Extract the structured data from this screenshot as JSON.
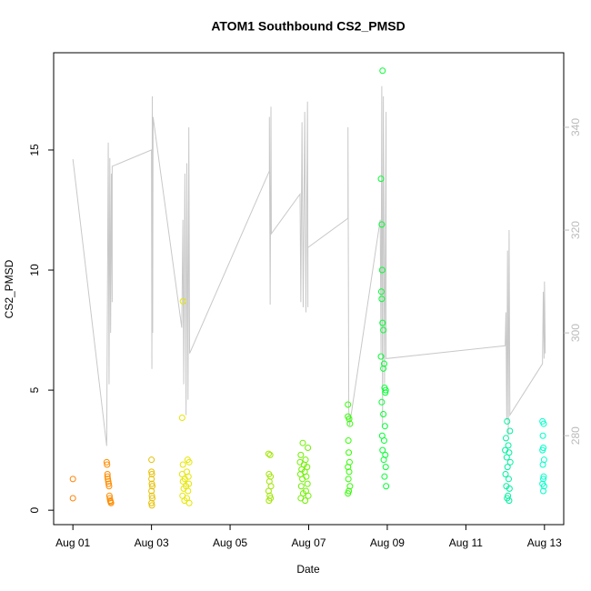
{
  "chart_data": {
    "type": "scatter",
    "title": "ATOM1 Southbound CS2_PMSD",
    "xlabel": "Date",
    "ylabel": "CS2_PMSD",
    "xlim": [
      -0.49,
      12.49
    ],
    "xticks": [
      {
        "value": 0,
        "label": "Aug 01"
      },
      {
        "value": 2,
        "label": "Aug 03"
      },
      {
        "value": 4,
        "label": "Aug 05"
      },
      {
        "value": 6,
        "label": "Aug 07"
      },
      {
        "value": 8,
        "label": "Aug 09"
      },
      {
        "value": 10,
        "label": "Aug 11"
      },
      {
        "value": 12,
        "label": "Aug 13"
      }
    ],
    "ylim": [
      -0.6,
      19.05
    ],
    "yticks": [
      0,
      5,
      10,
      15
    ],
    "y2lim": [
      262.7,
      354.5
    ],
    "y2ticks": [
      280,
      300,
      320,
      340
    ],
    "grid": false,
    "series": [
      {
        "type": "line",
        "axis": "y2",
        "color": "#c8c8c8",
        "x": [
          0,
          0.86,
          0.88,
          0.9,
          0.92,
          0.94,
          0.96,
          0.98,
          1.0,
          1.0,
          2.0,
          2.01,
          2.02,
          2.03,
          2.04,
          2.77,
          2.8,
          2.82,
          2.85,
          2.88,
          2.9,
          2.93,
          2.95,
          2.97,
          5.0,
          5.0,
          5.02,
          5.04,
          5.05,
          5.78,
          5.8,
          5.83,
          5.86,
          5.9,
          5.93,
          5.97,
          5.98,
          5.98,
          7.0,
          7.0,
          7.02,
          7.04,
          7.82,
          7.84,
          7.86,
          7.88,
          7.9,
          7.93,
          7.97,
          7.97,
          11.0,
          11.02,
          11.04,
          11.06,
          11.08,
          11.1,
          11.12,
          11.95,
          11.97,
          11.99,
          12.0,
          12.02
        ],
        "values": [
          333.8,
          278,
          308,
          337,
          290,
          334,
          300,
          331,
          306,
          332.4,
          335.6,
          293,
          346,
          300,
          342,
          301,
          322,
          290,
          331,
          284,
          333,
          287,
          340,
          296,
          331.5,
          342,
          305.5,
          344,
          319.3,
          327,
          306,
          341,
          305,
          343,
          304,
          345,
          305,
          316.6,
          322.3,
          340,
          285,
          282,
          322,
          296,
          348,
          282,
          346,
          290,
          343,
          295,
          297.5,
          304,
          283,
          316,
          280,
          320,
          284,
          294,
          308,
          295,
          310,
          296
        ]
      },
      {
        "type": "scatter",
        "color": "#ff7f00",
        "x": [
          0.0,
          0.0
        ],
        "values": [
          1.3,
          0.5
        ]
      },
      {
        "type": "scatter",
        "color": "#ff8c00",
        "x": [
          0.86,
          0.87,
          0.88,
          0.88,
          0.89,
          0.9,
          0.91,
          0.92,
          0.93,
          0.94,
          0.95,
          0.96,
          0.97
        ],
        "values": [
          2.0,
          1.9,
          1.5,
          1.4,
          1.3,
          1.2,
          1.1,
          1.0,
          0.6,
          0.5,
          0.4,
          0.35,
          0.3
        ]
      },
      {
        "type": "scatter",
        "color": "#e6c000",
        "x": [
          2.0,
          2.0,
          2.01,
          2.0,
          2.01,
          2.02,
          2.0,
          2.01,
          2.02,
          2.0,
          2.01
        ],
        "values": [
          2.1,
          1.6,
          1.5,
          1.3,
          1.1,
          1.0,
          0.8,
          0.6,
          0.5,
          0.3,
          0.2
        ]
      },
      {
        "type": "scatter",
        "color": "#e6e600",
        "x": [
          2.8,
          2.78,
          2.92,
          2.96,
          2.8,
          2.9,
          2.78,
          2.94,
          2.85,
          2.8,
          2.95,
          2.88,
          2.82,
          2.93,
          2.79,
          2.9,
          2.84,
          2.96
        ],
        "values": [
          8.7,
          3.85,
          2.1,
          2.0,
          1.9,
          1.6,
          1.5,
          1.4,
          1.3,
          1.2,
          1.1,
          1.0,
          0.9,
          0.8,
          0.6,
          0.5,
          0.4,
          0.3
        ]
      },
      {
        "type": "scatter",
        "color": "#a0e600",
        "x": [
          4.98,
          5.02,
          4.99,
          5.03,
          5.0,
          5.04,
          4.98,
          5.01,
          5.03,
          4.99
        ],
        "values": [
          2.35,
          2.3,
          1.5,
          1.4,
          1.2,
          1.0,
          0.8,
          0.6,
          0.5,
          0.4
        ]
      },
      {
        "type": "scatter",
        "color": "#70f000",
        "x": [
          5.85,
          5.98,
          5.8,
          5.92,
          5.78,
          5.88,
          5.96,
          5.82,
          5.9,
          5.79,
          5.94,
          5.84,
          5.97,
          5.81,
          5.93,
          5.86,
          5.99,
          5.8,
          5.91
        ],
        "values": [
          2.8,
          2.6,
          2.3,
          2.1,
          2.0,
          1.9,
          1.8,
          1.7,
          1.6,
          1.5,
          1.4,
          1.3,
          1.1,
          1.0,
          0.8,
          0.7,
          0.6,
          0.5,
          0.4
        ]
      },
      {
        "type": "scatter",
        "color": "#30ff00",
        "x": [
          7.0,
          7.0,
          7.03,
          7.05,
          7.01,
          7.02,
          7.04,
          7.0,
          7.03,
          7.01,
          7.05,
          7.02,
          7.0
        ],
        "values": [
          4.4,
          3.9,
          3.8,
          3.6,
          2.9,
          2.4,
          2.0,
          1.8,
          1.6,
          1.3,
          1.0,
          0.8,
          0.7
        ]
      },
      {
        "type": "scatter",
        "color": "#00ff30",
        "x": [
          7.88,
          7.84,
          7.86,
          7.87,
          7.85,
          7.86,
          7.88,
          7.9,
          7.84,
          7.92,
          7.9,
          7.93,
          7.96,
          7.95,
          7.86,
          7.9,
          7.94,
          7.87,
          7.92,
          7.88,
          7.95,
          7.91,
          7.96,
          7.93,
          7.97
        ],
        "values": [
          18.3,
          13.8,
          11.9,
          10.0,
          9.1,
          8.8,
          7.8,
          7.5,
          6.4,
          6.1,
          5.9,
          5.1,
          5.0,
          4.9,
          4.5,
          4.0,
          3.5,
          3.1,
          2.9,
          2.5,
          2.3,
          2.1,
          1.8,
          1.4,
          1.0
        ]
      },
      {
        "type": "scatter",
        "color": "#00f0a0",
        "x": [
          11.05,
          11.12,
          11.02,
          11.08,
          11.0,
          11.1,
          11.04,
          11.13,
          11.06,
          11.01,
          11.09,
          11.03,
          11.11,
          11.07,
          11.05,
          11.1
        ],
        "values": [
          3.7,
          3.3,
          3.0,
          2.7,
          2.5,
          2.4,
          2.2,
          2.0,
          1.8,
          1.5,
          1.3,
          1.0,
          0.9,
          0.6,
          0.5,
          0.4
        ]
      },
      {
        "type": "scatter",
        "color": "#00ffc8",
        "x": [
          11.95,
          11.98,
          11.96,
          11.97,
          11.95,
          11.99,
          11.96,
          11.98,
          11.97,
          11.95,
          11.99,
          11.97
        ],
        "values": [
          3.7,
          3.6,
          3.1,
          2.6,
          2.5,
          2.1,
          1.9,
          1.4,
          1.3,
          1.1,
          1.0,
          0.8
        ]
      }
    ]
  }
}
